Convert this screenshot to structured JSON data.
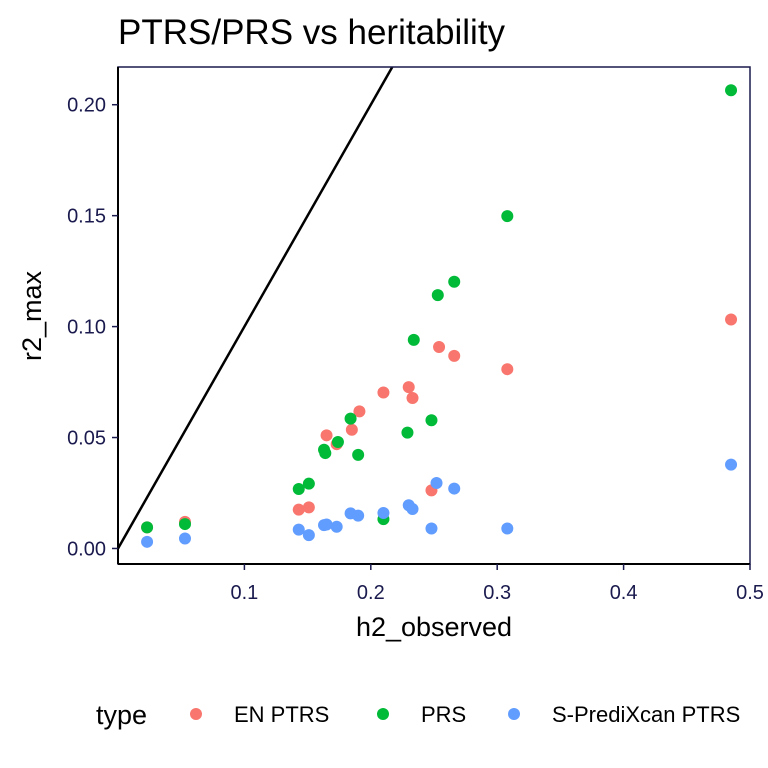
{
  "chart_data": {
    "type": "scatter",
    "title": "PTRS/PRS vs heritability",
    "xlabel": "h2_observed",
    "ylabel": "r2_max",
    "xlim": [
      0.0,
      0.5
    ],
    "ylim": [
      -0.007,
      0.217
    ],
    "x_ticks": [
      {
        "value": 0.1,
        "label": "0.1"
      },
      {
        "value": 0.2,
        "label": "0.2"
      },
      {
        "value": 0.3,
        "label": "0.3"
      },
      {
        "value": 0.4,
        "label": "0.4"
      },
      {
        "value": 0.5,
        "label": "0.5"
      }
    ],
    "y_ticks": [
      {
        "value": 0.0,
        "label": "0.00"
      },
      {
        "value": 0.05,
        "label": "0.05"
      },
      {
        "value": 0.1,
        "label": "0.10"
      },
      {
        "value": 0.15,
        "label": "0.15"
      },
      {
        "value": 0.2,
        "label": "0.20"
      }
    ],
    "grid": false,
    "reference_line": {
      "type": "identity",
      "slope": 1,
      "intercept": 0,
      "color": "#000000"
    },
    "legend": {
      "title": "type",
      "position": "bottom"
    },
    "series": [
      {
        "name": "EN PTRS",
        "color": "#F8766D",
        "points": [
          {
            "x": 0.023,
            "y": 0.0095
          },
          {
            "x": 0.053,
            "y": 0.012
          },
          {
            "x": 0.143,
            "y": 0.0175
          },
          {
            "x": 0.151,
            "y": 0.0185
          },
          {
            "x": 0.165,
            "y": 0.051
          },
          {
            "x": 0.173,
            "y": 0.047
          },
          {
            "x": 0.185,
            "y": 0.0535
          },
          {
            "x": 0.191,
            "y": 0.0618
          },
          {
            "x": 0.21,
            "y": 0.0703
          },
          {
            "x": 0.23,
            "y": 0.0727
          },
          {
            "x": 0.233,
            "y": 0.0678
          },
          {
            "x": 0.248,
            "y": 0.0262
          },
          {
            "x": 0.254,
            "y": 0.0908
          },
          {
            "x": 0.266,
            "y": 0.0868
          },
          {
            "x": 0.308,
            "y": 0.0808
          },
          {
            "x": 0.485,
            "y": 0.1032
          }
        ]
      },
      {
        "name": "PRS",
        "color": "#00BA38",
        "points": [
          {
            "x": 0.023,
            "y": 0.0095
          },
          {
            "x": 0.053,
            "y": 0.011
          },
          {
            "x": 0.143,
            "y": 0.0268
          },
          {
            "x": 0.151,
            "y": 0.0292
          },
          {
            "x": 0.163,
            "y": 0.0445
          },
          {
            "x": 0.164,
            "y": 0.043
          },
          {
            "x": 0.174,
            "y": 0.048
          },
          {
            "x": 0.184,
            "y": 0.0585
          },
          {
            "x": 0.19,
            "y": 0.0422
          },
          {
            "x": 0.21,
            "y": 0.0132
          },
          {
            "x": 0.229,
            "y": 0.0522
          },
          {
            "x": 0.234,
            "y": 0.094
          },
          {
            "x": 0.248,
            "y": 0.0578
          },
          {
            "x": 0.253,
            "y": 0.1142
          },
          {
            "x": 0.266,
            "y": 0.1202
          },
          {
            "x": 0.308,
            "y": 0.1498
          },
          {
            "x": 0.485,
            "y": 0.2065
          }
        ]
      },
      {
        "name": "S-PrediXcan PTRS",
        "color": "#619CFF",
        "points": [
          {
            "x": 0.023,
            "y": 0.003
          },
          {
            "x": 0.053,
            "y": 0.0045
          },
          {
            "x": 0.143,
            "y": 0.0085
          },
          {
            "x": 0.151,
            "y": 0.006
          },
          {
            "x": 0.163,
            "y": 0.0105
          },
          {
            "x": 0.165,
            "y": 0.0108
          },
          {
            "x": 0.173,
            "y": 0.0098
          },
          {
            "x": 0.184,
            "y": 0.0158
          },
          {
            "x": 0.19,
            "y": 0.0148
          },
          {
            "x": 0.21,
            "y": 0.016
          },
          {
            "x": 0.23,
            "y": 0.0195
          },
          {
            "x": 0.233,
            "y": 0.0178
          },
          {
            "x": 0.248,
            "y": 0.009
          },
          {
            "x": 0.252,
            "y": 0.0295
          },
          {
            "x": 0.266,
            "y": 0.027
          },
          {
            "x": 0.308,
            "y": 0.009
          },
          {
            "x": 0.485,
            "y": 0.0378
          }
        ]
      }
    ]
  }
}
